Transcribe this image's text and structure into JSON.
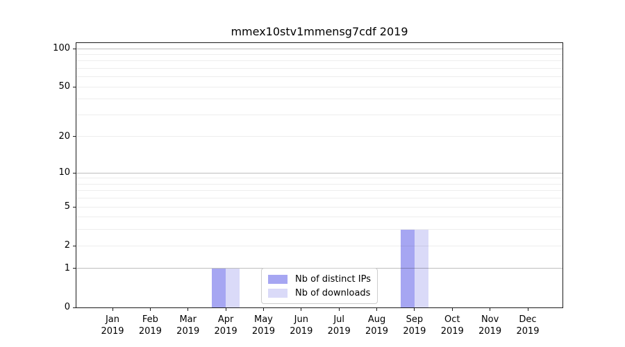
{
  "chart_data": {
    "type": "bar",
    "title": "mmex10stv1mmensg7cdf 2019",
    "x_categories": [
      "Jan",
      "Feb",
      "Mar",
      "Apr",
      "May",
      "Jun",
      "Jul",
      "Aug",
      "Sep",
      "Oct",
      "Nov",
      "Dec"
    ],
    "x_year": "2019",
    "series": [
      {
        "name": "Nb of distinct IPs",
        "color": "#a6a6f2",
        "values": [
          0,
          0,
          0,
          1,
          0,
          0,
          0,
          0,
          3,
          0,
          0,
          0
        ]
      },
      {
        "name": "Nb of downloads",
        "color": "#dadaf8",
        "values": [
          0,
          0,
          0,
          1,
          0,
          0,
          0,
          0,
          3,
          0,
          0,
          0
        ]
      }
    ],
    "y_scale": "log1p",
    "y_ticks_labeled": [
      0,
      1,
      2,
      5,
      10,
      20,
      50,
      100
    ],
    "y_grid_major": [
      1,
      10,
      100
    ],
    "y_grid_minor": [
      2,
      3,
      4,
      5,
      6,
      7,
      8,
      9,
      20,
      30,
      40,
      50,
      60,
      70,
      80,
      90
    ],
    "ylim": [
      0,
      110
    ],
    "grid": true,
    "legend_position": "lower center"
  }
}
